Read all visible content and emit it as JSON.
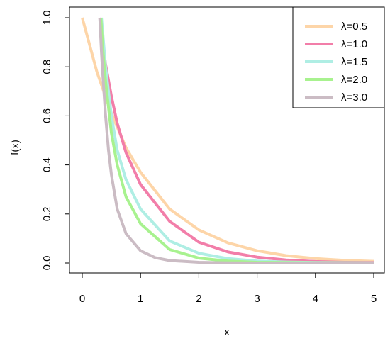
{
  "chart_data": {
    "type": "line",
    "title": "",
    "xlabel": "x",
    "ylabel": "f(x)",
    "xlim": [
      0,
      5
    ],
    "ylim": [
      0,
      1
    ],
    "x_ticks": [
      "0",
      "1",
      "2",
      "3",
      "4",
      "5"
    ],
    "y_ticks": [
      "0.0",
      "0.2",
      "0.4",
      "0.6",
      "0.8",
      "1.0"
    ],
    "grid": false,
    "legend_position": "top-right",
    "series": [
      {
        "name": "λ=0.5",
        "color": "#FDD5A8",
        "x": [
          0,
          0.25,
          0.5,
          0.75,
          1,
          1.5,
          2,
          2.5,
          3,
          3.5,
          4,
          4.5,
          5
        ],
        "y": [
          1.0,
          0.78,
          0.61,
          0.47,
          0.37,
          0.22,
          0.135,
          0.082,
          0.05,
          0.03,
          0.018,
          0.011,
          0.007
        ]
      },
      {
        "name": "λ=1.0",
        "color": "#F27EA9",
        "x": [
          0.3,
          0.35,
          0.4,
          0.5,
          0.6,
          0.75,
          1,
          1.5,
          2,
          2.5,
          3,
          3.5,
          4,
          4.5,
          5
        ],
        "y": [
          1.0,
          0.9,
          0.81,
          0.68,
          0.57,
          0.45,
          0.32,
          0.17,
          0.085,
          0.045,
          0.024,
          0.012,
          0.006,
          0.003,
          0.002
        ]
      },
      {
        "name": "λ=1.5",
        "color": "#AFEEE4",
        "x": [
          0.33,
          0.4,
          0.5,
          0.6,
          0.75,
          1,
          1.5,
          2,
          2.5,
          3,
          3.5,
          4,
          5
        ],
        "y": [
          1.0,
          0.8,
          0.6,
          0.46,
          0.34,
          0.22,
          0.09,
          0.04,
          0.018,
          0.008,
          0.004,
          0.002,
          0.001
        ]
      },
      {
        "name": "λ=2.0",
        "color": "#A8F28F",
        "x": [
          0.32,
          0.35,
          0.4,
          0.5,
          0.6,
          0.75,
          1,
          1.5,
          2,
          2.5,
          3,
          4,
          5
        ],
        "y": [
          1.0,
          0.88,
          0.74,
          0.53,
          0.4,
          0.27,
          0.16,
          0.055,
          0.02,
          0.008,
          0.003,
          0.001,
          0.0
        ]
      },
      {
        "name": "λ=3.0",
        "color": "#CBBCC4",
        "x": [
          0.3,
          0.33,
          0.36,
          0.4,
          0.45,
          0.5,
          0.6,
          0.75,
          1,
          1.25,
          1.5,
          2,
          2.5,
          3,
          5
        ],
        "y": [
          1.0,
          0.86,
          0.74,
          0.6,
          0.46,
          0.36,
          0.22,
          0.12,
          0.05,
          0.022,
          0.01,
          0.003,
          0.001,
          0.0,
          0.0
        ]
      }
    ]
  }
}
